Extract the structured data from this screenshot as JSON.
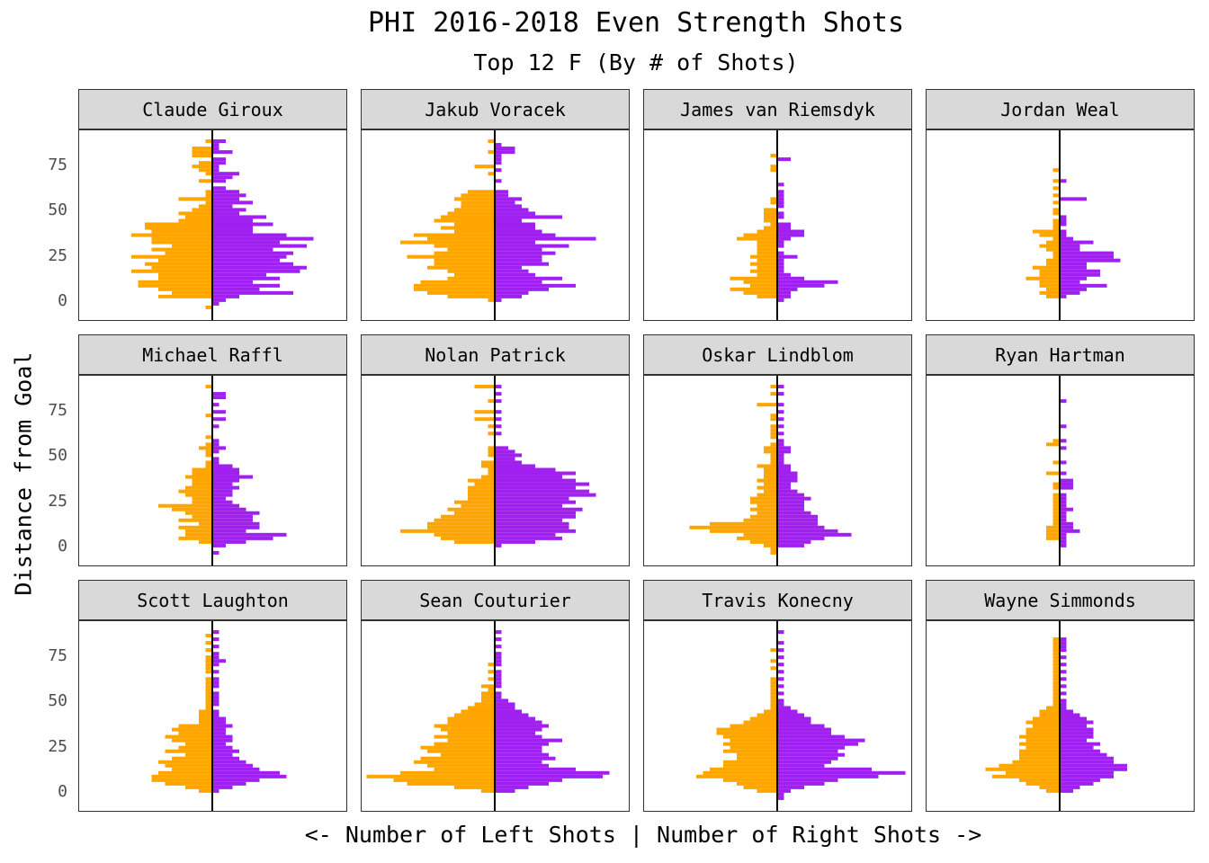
{
  "colors": {
    "left": "#FFA500",
    "right": "#A020F0",
    "axis_line": "#000000",
    "strip": "#d9d9d9"
  },
  "chart_data": {
    "type": "bar",
    "title": "PHI 2016-2018 Even Strength Shots",
    "subtitle": "Top 12 F (By # of Shots)",
    "ylabel": "Distance from Goal",
    "xlabel": "<- Number of Left Shots | Number of Right Shots ->",
    "ylim": [
      -10,
      95
    ],
    "y_ticks": [
      0,
      25,
      50,
      75
    ],
    "bin_width": 2,
    "grid": false,
    "players": [
      {
        "name": "Claude Giroux",
        "left": {
          "89": 1,
          "85": 3,
          "83": 3,
          "81": 3,
          "77": 2,
          "75": 3,
          "73": 2,
          "71": 1,
          "67": 2,
          "61": 1,
          "59": 1,
          "57": 5,
          "55": 1,
          "53": 2,
          "51": 3,
          "49": 5,
          "47": 4,
          "45": 5,
          "43": 10,
          "41": 10,
          "39": 9,
          "37": 12,
          "35": 9,
          "33": 9,
          "31": 6,
          "29": 9,
          "27": 7,
          "25": 12,
          "23": 8,
          "21": 10,
          "19": 9,
          "17": 12,
          "15": 8,
          "13": 8,
          "11": 11,
          "9": 11,
          "7": 8,
          "5": 6,
          "3": 8,
          "-3": 1
        },
        "right": {
          "89": 2,
          "87": 1,
          "85": 1,
          "83": 3,
          "79": 2,
          "77": 2,
          "75": 1,
          "73": 1,
          "71": 4,
          "69": 3,
          "67": 2,
          "63": 2,
          "61": 4,
          "59": 5,
          "57": 4,
          "55": 6,
          "53": 3,
          "51": 5,
          "49": 4,
          "47": 8,
          "45": 6,
          "43": 9,
          "41": 6,
          "39": 6,
          "37": 11,
          "35": 15,
          "33": 10,
          "31": 14,
          "29": 9,
          "27": 12,
          "25": 11,
          "23": 10,
          "21": 12,
          "19": 14,
          "17": 13,
          "15": 8,
          "13": 10,
          "11": 6,
          "9": 10,
          "7": 7,
          "5": 12,
          "3": 4,
          "1": 2,
          "-1": 1
        }
      },
      {
        "name": "Jakub Voracek",
        "left": {
          "89": 1,
          "83": 1,
          "75": 3,
          "71": 1,
          "61": 4,
          "59": 5,
          "57": 6,
          "55": 5,
          "53": 5,
          "51": 6,
          "49": 7,
          "47": 8,
          "45": 9,
          "43": 6,
          "41": 8,
          "39": 6,
          "37": 12,
          "35": 10,
          "33": 14,
          "31": 9,
          "29": 7,
          "27": 9,
          "25": 13,
          "23": 9,
          "21": 9,
          "19": 10,
          "17": 7,
          "15": 6,
          "13": 7,
          "11": 11,
          "9": 12,
          "7": 12,
          "5": 10,
          "3": 7,
          "1": 1
        },
        "right": {
          "87": 1,
          "85": 3,
          "83": 3,
          "81": 1,
          "79": 1,
          "77": 1,
          "73": 1,
          "67": 1,
          "61": 2,
          "59": 2,
          "57": 4,
          "55": 3,
          "53": 4,
          "51": 5,
          "49": 6,
          "47": 10,
          "45": 4,
          "43": 6,
          "41": 6,
          "39": 7,
          "37": 9,
          "35": 15,
          "33": 6,
          "31": 11,
          "29": 7,
          "27": 9,
          "25": 7,
          "23": 7,
          "21": 8,
          "19": 4,
          "17": 5,
          "15": 6,
          "13": 10,
          "11": 7,
          "9": 12,
          "7": 8,
          "5": 5,
          "3": 4,
          "1": 1
        }
      },
      {
        "name": "James van Riemsdyk",
        "left": {
          "81": 1,
          "75": 1,
          "73": 1,
          "57": 1,
          "55": 1,
          "51": 2,
          "49": 2,
          "47": 2,
          "45": 2,
          "43": 1,
          "41": 2,
          "39": 3,
          "37": 5,
          "35": 6,
          "33": 3,
          "31": 3,
          "29": 3,
          "27": 3,
          "25": 4,
          "23": 3,
          "21": 4,
          "19": 3,
          "17": 4,
          "15": 3,
          "13": 7,
          "11": 5,
          "9": 4,
          "7": 7,
          "5": 5,
          "3": 3
        },
        "right": {
          "79": 2,
          "65": 1,
          "61": 1,
          "59": 1,
          "57": 1,
          "55": 1,
          "53": 1,
          "49": 1,
          "47": 1,
          "43": 2,
          "41": 2,
          "39": 4,
          "37": 4,
          "35": 2,
          "33": 1,
          "31": 1,
          "27": 1,
          "25": 3,
          "23": 1,
          "21": 1,
          "19": 1,
          "17": 1,
          "15": 2,
          "13": 4,
          "11": 9,
          "9": 7,
          "7": 3,
          "5": 2,
          "3": 2,
          "1": 1
        }
      },
      {
        "name": "Jordan Weal",
        "left": {
          "73": 1,
          "67": 1,
          "63": 1,
          "59": 1,
          "55": 1,
          "51": 1,
          "49": 1,
          "45": 1,
          "43": 1,
          "41": 1,
          "39": 4,
          "37": 3,
          "35": 1,
          "33": 2,
          "31": 3,
          "29": 2,
          "27": 1,
          "25": 1,
          "23": 2,
          "21": 2,
          "19": 4,
          "17": 3,
          "15": 3,
          "13": 5,
          "11": 3,
          "9": 3,
          "7": 2,
          "5": 3,
          "3": 2
        },
        "right": {
          "67": 1,
          "57": 4,
          "47": 1,
          "45": 1,
          "43": 1,
          "39": 1,
          "37": 1,
          "35": 2,
          "33": 5,
          "31": 3,
          "29": 3,
          "27": 8,
          "25": 8,
          "23": 9,
          "21": 4,
          "19": 4,
          "17": 6,
          "15": 6,
          "13": 4,
          "11": 3,
          "9": 7,
          "7": 4,
          "5": 3,
          "3": 1
        }
      },
      {
        "name": "Michael Raffl",
        "left": {
          "89": 1,
          "73": 1,
          "61": 1,
          "57": 1,
          "55": 2,
          "53": 1,
          "51": 1,
          "47": 1,
          "45": 1,
          "43": 3,
          "41": 3,
          "39": 4,
          "37": 3,
          "35": 3,
          "33": 4,
          "31": 5,
          "29": 4,
          "27": 3,
          "25": 3,
          "23": 8,
          "21": 6,
          "19": 4,
          "17": 3,
          "15": 5,
          "13": 2,
          "11": 5,
          "9": 4,
          "7": 4,
          "5": 5,
          "3": 2
        },
        "right": {
          "85": 2,
          "83": 2,
          "79": 1,
          "75": 2,
          "71": 2,
          "67": 1,
          "59": 1,
          "57": 1,
          "55": 2,
          "53": 1,
          "49": 1,
          "47": 1,
          "45": 3,
          "43": 4,
          "41": 4,
          "39": 6,
          "37": 4,
          "35": 3,
          "33": 4,
          "31": 3,
          "29": 3,
          "27": 2,
          "25": 3,
          "23": 4,
          "21": 5,
          "19": 7,
          "17": 6,
          "15": 6,
          "13": 7,
          "11": 7,
          "9": 5,
          "7": 11,
          "5": 9,
          "3": 5,
          "1": 2,
          "-3": 1
        }
      },
      {
        "name": "Nolan Patrick",
        "left": {
          "89": 3,
          "81": 1,
          "75": 3,
          "71": 3,
          "67": 1,
          "63": 1,
          "55": 1,
          "53": 1,
          "51": 1,
          "47": 2,
          "45": 2,
          "43": 1,
          "41": 1,
          "39": 2,
          "37": 4,
          "35": 3,
          "33": 4,
          "31": 4,
          "29": 4,
          "27": 4,
          "25": 6,
          "23": 5,
          "21": 7,
          "19": 6,
          "17": 8,
          "15": 9,
          "13": 10,
          "11": 10,
          "9": 14,
          "7": 9,
          "5": 8,
          "3": 6
        },
        "right": {
          "89": 1,
          "85": 1,
          "81": 1,
          "75": 1,
          "71": 1,
          "67": 1,
          "63": 1,
          "55": 2,
          "53": 3,
          "51": 4,
          "49": 3,
          "47": 4,
          "45": 6,
          "43": 9,
          "41": 12,
          "39": 10,
          "37": 12,
          "35": 14,
          "33": 12,
          "31": 14,
          "29": 15,
          "27": 11,
          "25": 12,
          "23": 10,
          "21": 13,
          "19": 12,
          "17": 12,
          "15": 10,
          "13": 11,
          "11": 11,
          "9": 12,
          "7": 9,
          "5": 10,
          "3": 6,
          "1": 1
        }
      },
      {
        "name": "Oskar Lindblom",
        "left": {
          "89": 1,
          "85": 1,
          "79": 3,
          "73": 1,
          "71": 1,
          "67": 1,
          "65": 1,
          "63": 1,
          "61": 1,
          "57": 1,
          "55": 2,
          "53": 2,
          "51": 1,
          "49": 1,
          "47": 1,
          "45": 3,
          "43": 2,
          "41": 2,
          "39": 2,
          "37": 3,
          "35": 2,
          "33": 3,
          "31": 2,
          "29": 3,
          "27": 4,
          "25": 4,
          "23": 3,
          "21": 4,
          "19": 3,
          "17": 4,
          "15": 5,
          "13": 10,
          "11": 13,
          "9": 10,
          "7": 5,
          "5": 6,
          "3": 4,
          "1": 2,
          "-1": 1,
          "-3": 1
        },
        "right": {
          "89": 1,
          "85": 1,
          "79": 1,
          "75": 1,
          "71": 1,
          "67": 1,
          "63": 1,
          "59": 1,
          "57": 1,
          "55": 2,
          "53": 2,
          "51": 1,
          "49": 1,
          "47": 1,
          "45": 2,
          "43": 2,
          "41": 3,
          "39": 3,
          "37": 3,
          "35": 2,
          "33": 2,
          "31": 3,
          "29": 4,
          "27": 5,
          "25": 4,
          "23": 4,
          "21": 4,
          "19": 5,
          "17": 6,
          "15": 6,
          "13": 6,
          "11": 7,
          "9": 9,
          "7": 11,
          "5": 7,
          "3": 5,
          "1": 4
        }
      },
      {
        "name": "Ryan Hartman",
        "left": {
          "59": 1,
          "57": 2,
          "47": 1,
          "41": 2,
          "35": 1,
          "33": 1,
          "29": 1,
          "27": 1,
          "25": 1,
          "23": 1,
          "21": 1,
          "19": 1,
          "17": 1,
          "15": 1,
          "13": 1,
          "11": 2,
          "9": 2,
          "7": 2,
          "5": 2
        },
        "right": {
          "81": 1,
          "67": 1,
          "59": 1,
          "55": 1,
          "47": 1,
          "41": 1,
          "37": 2,
          "35": 2,
          "33": 2,
          "29": 1,
          "27": 1,
          "25": 1,
          "23": 1,
          "21": 2,
          "19": 1,
          "17": 1,
          "15": 1,
          "13": 2,
          "11": 2,
          "9": 3,
          "7": 1,
          "5": 1,
          "3": 1,
          "1": 1
        }
      },
      {
        "name": "Scott Laughton",
        "left": {
          "87": 1,
          "83": 1,
          "79": 1,
          "75": 1,
          "73": 1,
          "71": 1,
          "69": 1,
          "67": 1,
          "63": 1,
          "61": 1,
          "59": 1,
          "57": 1,
          "55": 1,
          "53": 1,
          "51": 1,
          "49": 1,
          "47": 1,
          "45": 2,
          "43": 2,
          "41": 2,
          "39": 2,
          "37": 5,
          "35": 6,
          "33": 5,
          "31": 7,
          "29": 6,
          "27": 4,
          "25": 5,
          "23": 7,
          "21": 4,
          "19": 6,
          "17": 8,
          "15": 7,
          "13": 6,
          "11": 8,
          "9": 9,
          "7": 9,
          "5": 7,
          "3": 4,
          "1": 2
        },
        "right": {
          "89": 1,
          "85": 1,
          "81": 1,
          "77": 1,
          "75": 1,
          "73": 2,
          "71": 1,
          "67": 1,
          "63": 1,
          "61": 1,
          "59": 1,
          "55": 1,
          "53": 1,
          "51": 1,
          "49": 1,
          "45": 1,
          "43": 1,
          "41": 2,
          "39": 2,
          "37": 3,
          "35": 2,
          "33": 2,
          "31": 3,
          "29": 3,
          "27": 2,
          "25": 3,
          "23": 4,
          "21": 3,
          "19": 4,
          "17": 5,
          "15": 6,
          "13": 7,
          "11": 10,
          "9": 11,
          "7": 7,
          "5": 5,
          "3": 3,
          "1": 1
        }
      },
      {
        "name": "Sean Couturier",
        "left": {
          "71": 1,
          "67": 1,
          "63": 1,
          "59": 2,
          "57": 1,
          "55": 2,
          "53": 2,
          "51": 2,
          "49": 3,
          "47": 4,
          "45": 5,
          "43": 6,
          "41": 7,
          "39": 7,
          "37": 9,
          "35": 8,
          "33": 7,
          "31": 9,
          "29": 7,
          "27": 9,
          "25": 11,
          "23": 10,
          "21": 8,
          "19": 11,
          "17": 12,
          "15": 10,
          "13": 9,
          "11": 14,
          "9": 19,
          "7": 15,
          "5": 13,
          "3": 6,
          "1": 2
        },
        "right": {
          "89": 1,
          "85": 1,
          "81": 1,
          "77": 1,
          "75": 1,
          "73": 1,
          "71": 1,
          "67": 1,
          "65": 1,
          "63": 1,
          "61": 1,
          "59": 1,
          "55": 1,
          "53": 1,
          "51": 2,
          "49": 3,
          "47": 3,
          "45": 4,
          "43": 5,
          "41": 6,
          "39": 7,
          "37": 8,
          "35": 7,
          "33": 6,
          "31": 7,
          "29": 10,
          "27": 8,
          "25": 7,
          "23": 7,
          "21": 8,
          "19": 9,
          "17": 7,
          "15": 8,
          "13": 12,
          "11": 17,
          "9": 16,
          "7": 10,
          "5": 8,
          "3": 5,
          "1": 3
        }
      },
      {
        "name": "Travis Konecny",
        "left": {
          "79": 1,
          "73": 1,
          "69": 1,
          "63": 1,
          "61": 1,
          "59": 1,
          "57": 1,
          "55": 1,
          "53": 1,
          "51": 1,
          "49": 1,
          "47": 1,
          "45": 2,
          "43": 3,
          "41": 4,
          "39": 5,
          "37": 7,
          "35": 9,
          "33": 9,
          "31": 8,
          "29": 7,
          "27": 8,
          "25": 7,
          "23": 8,
          "21": 6,
          "19": 6,
          "17": 8,
          "15": 8,
          "13": 10,
          "11": 11,
          "9": 12,
          "7": 8,
          "5": 6,
          "3": 5,
          "1": 3
        },
        "right": {
          "89": 1,
          "83": 1,
          "79": 1,
          "75": 1,
          "71": 1,
          "67": 1,
          "63": 1,
          "59": 1,
          "55": 1,
          "51": 1,
          "49": 1,
          "47": 2,
          "45": 3,
          "43": 4,
          "41": 5,
          "39": 5,
          "37": 7,
          "35": 8,
          "33": 8,
          "31": 10,
          "29": 13,
          "27": 12,
          "25": 10,
          "23": 9,
          "21": 10,
          "19": 9,
          "17": 8,
          "15": 7,
          "13": 14,
          "11": 19,
          "9": 15,
          "7": 9,
          "5": 7,
          "3": 4,
          "1": 2,
          "-1": 1,
          "-3": 1
        }
      },
      {
        "name": "Wayne Simmonds",
        "left": {
          "85": 1,
          "83": 1,
          "81": 1,
          "79": 1,
          "77": 1,
          "75": 1,
          "73": 1,
          "71": 1,
          "69": 1,
          "67": 1,
          "65": 1,
          "63": 1,
          "61": 1,
          "59": 1,
          "57": 1,
          "55": 1,
          "53": 1,
          "51": 1,
          "49": 1,
          "47": 2,
          "45": 3,
          "43": 3,
          "41": 4,
          "39": 5,
          "37": 4,
          "35": 5,
          "33": 5,
          "31": 6,
          "29": 5,
          "27": 6,
          "25": 5,
          "23": 6,
          "21": 6,
          "19": 6,
          "17": 7,
          "15": 9,
          "13": 11,
          "11": 8,
          "9": 10,
          "7": 6,
          "5": 5,
          "3": 3,
          "1": 2
        },
        "right": {
          "85": 1,
          "83": 1,
          "81": 1,
          "79": 1,
          "75": 1,
          "71": 1,
          "67": 1,
          "63": 1,
          "59": 1,
          "55": 1,
          "51": 1,
          "49": 1,
          "47": 1,
          "45": 2,
          "43": 3,
          "41": 4,
          "39": 5,
          "37": 4,
          "35": 5,
          "33": 5,
          "31": 5,
          "29": 4,
          "27": 6,
          "25": 5,
          "23": 6,
          "21": 7,
          "19": 8,
          "17": 8,
          "15": 10,
          "13": 10,
          "11": 8,
          "9": 8,
          "7": 6,
          "5": 5,
          "3": 3,
          "1": 2
        }
      }
    ]
  }
}
